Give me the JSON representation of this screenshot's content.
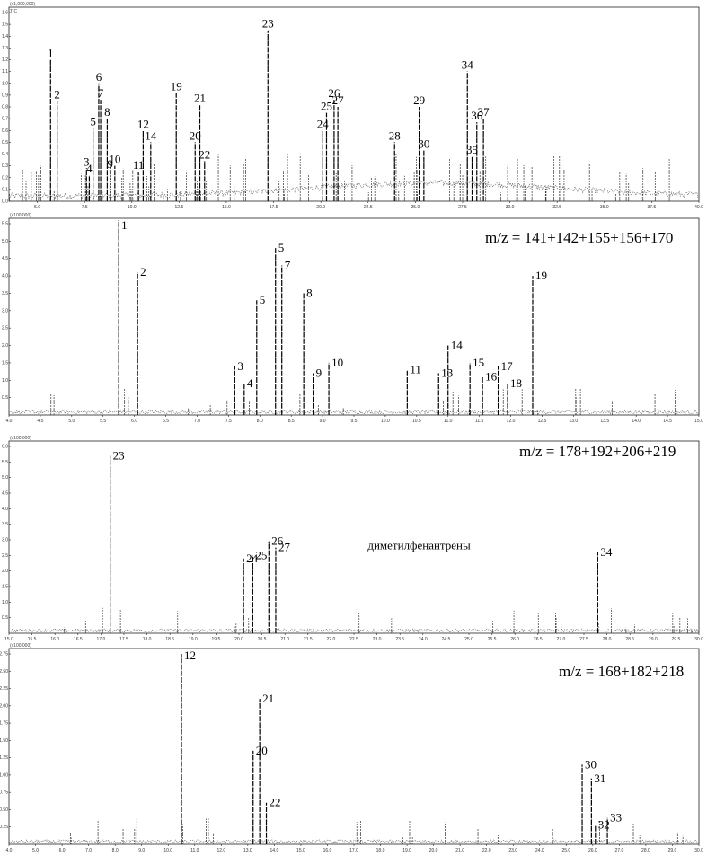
{
  "chart_data": [
    {
      "type": "line",
      "title": "",
      "scale_note": "(x1,000,000)",
      "channel": "TIC",
      "x_ticks": [
        "5.0",
        "7.5",
        "10.0",
        "12.5",
        "15.0",
        "17.5",
        "20.0",
        "22.5",
        "25.0",
        "27.5",
        "30.0",
        "32.5",
        "35.0",
        "37.5",
        "40.0"
      ],
      "y_ticks": [
        "0.0",
        "0.1",
        "0.2",
        "0.3",
        "0.4",
        "0.5",
        "0.6",
        "0.7",
        "0.8",
        "0.9",
        "1.0",
        "1.1",
        "1.2",
        "1.3",
        "1.4",
        "1.5",
        "1.6"
      ],
      "xlim": [
        3.5,
        40.0
      ],
      "ylim": [
        0,
        1.6
      ],
      "peaks": [
        {
          "label": "1",
          "x": 5.7,
          "y": 1.2
        },
        {
          "label": "2",
          "x": 6.05,
          "y": 0.85
        },
        {
          "label": "3",
          "x": 7.6,
          "y": 0.28
        },
        {
          "label": "4",
          "x": 7.75,
          "y": 0.22
        },
        {
          "label": "5",
          "x": 7.95,
          "y": 0.62
        },
        {
          "label": "6",
          "x": 8.25,
          "y": 1.0
        },
        {
          "label": "7",
          "x": 8.35,
          "y": 0.86
        },
        {
          "label": "8",
          "x": 8.7,
          "y": 0.7
        },
        {
          "label": "9",
          "x": 8.85,
          "y": 0.26
        },
        {
          "label": "10",
          "x": 9.1,
          "y": 0.3
        },
        {
          "label": "11",
          "x": 10.35,
          "y": 0.25
        },
        {
          "label": "12",
          "x": 10.6,
          "y": 0.6
        },
        {
          "label": "14",
          "x": 11.0,
          "y": 0.5
        },
        {
          "label": "19",
          "x": 12.35,
          "y": 0.92
        },
        {
          "label": "20",
          "x": 13.35,
          "y": 0.5
        },
        {
          "label": "21",
          "x": 13.6,
          "y": 0.82
        },
        {
          "label": "22",
          "x": 13.85,
          "y": 0.34
        },
        {
          "label": "23",
          "x": 17.2,
          "y": 1.45
        },
        {
          "label": "24",
          "x": 20.1,
          "y": 0.6
        },
        {
          "label": "25",
          "x": 20.3,
          "y": 0.75
        },
        {
          "label": "26",
          "x": 20.7,
          "y": 0.86
        },
        {
          "label": "27",
          "x": 20.9,
          "y": 0.8
        },
        {
          "label": "28",
          "x": 23.9,
          "y": 0.5
        },
        {
          "label": "29",
          "x": 25.2,
          "y": 0.8
        },
        {
          "label": "30",
          "x": 25.45,
          "y": 0.43
        },
        {
          "label": "34",
          "x": 27.75,
          "y": 1.1
        },
        {
          "label": "35",
          "x": 28.0,
          "y": 0.38
        },
        {
          "label": "36",
          "x": 28.25,
          "y": 0.67
        },
        {
          "label": "37",
          "x": 28.6,
          "y": 0.7
        }
      ]
    },
    {
      "type": "line",
      "title": "m/z = 141+142+155+156+170",
      "scale_note": "(x100,000)",
      "xlim": [
        4.0,
        15.0
      ],
      "ylim": [
        0,
        5.5
      ],
      "x_ticks": [
        "4.0",
        "4.5",
        "5.0",
        "5.5",
        "6.0",
        "6.5",
        "7.0",
        "7.5",
        "8.0",
        "8.5",
        "9.0",
        "9.5",
        "10.0",
        "10.5",
        "11.0",
        "11.5",
        "12.0",
        "12.5",
        "13.0",
        "13.5",
        "14.0",
        "14.5",
        "15.0"
      ],
      "y_ticks": [
        "0.5",
        "1.0",
        "1.5",
        "2.0",
        "2.5",
        "3.0",
        "3.5",
        "4.0",
        "4.5",
        "5.0",
        "5.5"
      ],
      "peaks": [
        {
          "label": "1",
          "x": 5.75,
          "y": 5.6
        },
        {
          "label": "2",
          "x": 6.05,
          "y": 4.1
        },
        {
          "label": "3",
          "x": 7.6,
          "y": 1.4
        },
        {
          "label": "4",
          "x": 7.75,
          "y": 0.9
        },
        {
          "label": "5",
          "x": 7.95,
          "y": 3.3
        },
        {
          "label": "5",
          "x": 8.25,
          "y": 4.8
        },
        {
          "label": "7",
          "x": 8.35,
          "y": 4.3
        },
        {
          "label": "8",
          "x": 8.7,
          "y": 3.5
        },
        {
          "label": "9",
          "x": 8.85,
          "y": 1.2
        },
        {
          "label": "10",
          "x": 9.1,
          "y": 1.5
        },
        {
          "label": "11",
          "x": 10.35,
          "y": 1.3
        },
        {
          "label": "13",
          "x": 10.85,
          "y": 1.2
        },
        {
          "label": "14",
          "x": 11.0,
          "y": 2.0
        },
        {
          "label": "15",
          "x": 11.35,
          "y": 1.5
        },
        {
          "label": "16",
          "x": 11.55,
          "y": 1.1
        },
        {
          "label": "17",
          "x": 11.8,
          "y": 1.4
        },
        {
          "label": "18",
          "x": 11.95,
          "y": 0.9
        },
        {
          "label": "19",
          "x": 12.35,
          "y": 4.0
        }
      ]
    },
    {
      "type": "line",
      "title": "m/z = 178+192+206+219",
      "annotation": "диметилфенантрены",
      "scale_note": "(x100,000)",
      "xlim": [
        15.0,
        30.0
      ],
      "ylim": [
        0,
        6.0
      ],
      "x_ticks": [
        "15.0",
        "15.5",
        "16.0",
        "16.5",
        "17.0",
        "17.5",
        "18.0",
        "18.5",
        "19.0",
        "19.5",
        "20.0",
        "20.5",
        "21.0",
        "21.5",
        "22.0",
        "22.5",
        "23.0",
        "23.5",
        "24.0",
        "24.5",
        "25.0",
        "25.5",
        "26.0",
        "26.5",
        "27.0",
        "27.5",
        "28.0",
        "28.5",
        "29.0",
        "29.5",
        "30.0"
      ],
      "y_ticks": [
        "0.5",
        "1.0",
        "1.5",
        "2.0",
        "2.5",
        "3.0",
        "3.5",
        "4.0",
        "4.5",
        "5.0",
        "5.5",
        "6.0"
      ],
      "peaks": [
        {
          "label": "23",
          "x": 17.2,
          "y": 5.7
        },
        {
          "label": "24",
          "x": 20.1,
          "y": 2.4
        },
        {
          "label": "25",
          "x": 20.3,
          "y": 2.5
        },
        {
          "label": "26",
          "x": 20.65,
          "y": 2.95
        },
        {
          "label": "27",
          "x": 20.8,
          "y": 2.75
        },
        {
          "label": "34",
          "x": 27.8,
          "y": 2.6
        }
      ]
    },
    {
      "type": "line",
      "title": "m/z = 168+182+218",
      "scale_note": "(x100,000)",
      "xlim": [
        4.0,
        30.0
      ],
      "ylim": [
        0,
        2.75
      ],
      "x_ticks": [
        "4.0",
        "5.0",
        "6.0",
        "7.0",
        "8.0",
        "9.0",
        "10.0",
        "11.0",
        "12.0",
        "13.0",
        "14.0",
        "15.0",
        "16.0",
        "17.0",
        "18.0",
        "19.0",
        "20.0",
        "21.0",
        "22.0",
        "23.0",
        "24.0",
        "25.0",
        "26.0",
        "27.0",
        "28.0",
        "29.0",
        "30.0"
      ],
      "y_ticks": [
        "0.25",
        "0.50",
        "0.75",
        "1.00",
        "1.25",
        "1.50",
        "1.75",
        "2.00",
        "2.25",
        "2.50",
        "2.75"
      ],
      "peaks": [
        {
          "label": "12",
          "x": 10.5,
          "y": 2.75
        },
        {
          "label": "20",
          "x": 13.2,
          "y": 1.35
        },
        {
          "label": "21",
          "x": 13.45,
          "y": 2.1
        },
        {
          "label": "22",
          "x": 13.7,
          "y": 0.6
        },
        {
          "label": "30",
          "x": 25.6,
          "y": 1.15
        },
        {
          "label": "31",
          "x": 25.95,
          "y": 0.95
        },
        {
          "label": "32",
          "x": 26.1,
          "y": 0.28
        },
        {
          "label": "33",
          "x": 26.55,
          "y": 0.38
        }
      ]
    }
  ]
}
